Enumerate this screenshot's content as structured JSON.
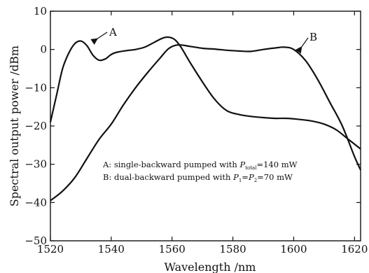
{
  "chart_data": {
    "type": "line",
    "title": "",
    "xlabel": "Wavelength /nm",
    "ylabel": "Spectral output power /dBm",
    "xlim": [
      1520,
      1622
    ],
    "ylim": [
      -50,
      10
    ],
    "xticks": [
      "1520",
      "1540",
      "1560",
      "1580",
      "1600",
      "1620"
    ],
    "yticks": [
      "10",
      "0",
      "-10",
      "-20",
      "-30",
      "-40",
      "-50"
    ],
    "grid": false,
    "series": [
      {
        "name": "A",
        "x": [
          1520,
          1522,
          1524,
          1526,
          1528,
          1530,
          1532,
          1534,
          1536,
          1538,
          1540,
          1542,
          1545,
          1548,
          1551,
          1554,
          1557,
          1559,
          1561,
          1563,
          1566,
          1570,
          1574,
          1578,
          1582,
          1586,
          1590,
          1594,
          1598,
          1602,
          1606,
          1610,
          1614,
          1618,
          1622
        ],
        "y": [
          -19,
          -12,
          -5,
          -1,
          1.5,
          2.2,
          1,
          -1.5,
          -2.8,
          -2.5,
          -1.3,
          -0.7,
          -0.3,
          0,
          0.6,
          1.8,
          3,
          3.2,
          2.5,
          0.5,
          -3.5,
          -8.5,
          -13,
          -16,
          -17,
          -17.5,
          -17.8,
          -18,
          -18,
          -18.3,
          -18.7,
          -19.5,
          -21,
          -23.5,
          -26
        ]
      },
      {
        "name": "B",
        "x": [
          1520,
          1524,
          1528,
          1532,
          1536,
          1540,
          1544,
          1548,
          1552,
          1556,
          1559,
          1562,
          1566,
          1570,
          1574,
          1578,
          1582,
          1586,
          1590,
          1594,
          1597,
          1600,
          1604,
          1608,
          1612,
          1616,
          1620,
          1622
        ],
        "y": [
          -39.5,
          -37,
          -33.5,
          -28.5,
          -23.5,
          -19.5,
          -14.5,
          -10,
          -6,
          -2.3,
          0.3,
          1.2,
          0.8,
          0.3,
          0.1,
          -0.2,
          -0.4,
          -0.5,
          0,
          0.4,
          0.6,
          0,
          -3,
          -8,
          -14,
          -20,
          -28,
          -31.5
        ]
      }
    ],
    "annotations": {
      "label_a": "A",
      "label_b": "B",
      "legend_a_pre": "A: single-backward pumped with ",
      "legend_a_var": "P",
      "legend_a_sub": "total",
      "legend_a_post": "=140 mW",
      "legend_b_pre": "B: dual-backward pumped with ",
      "legend_b_p1": "P",
      "legend_b_sub1": "1",
      "legend_b_eq": "=",
      "legend_b_p2": "P",
      "legend_b_sub2": "2",
      "legend_b_post": "=70 mW"
    }
  }
}
